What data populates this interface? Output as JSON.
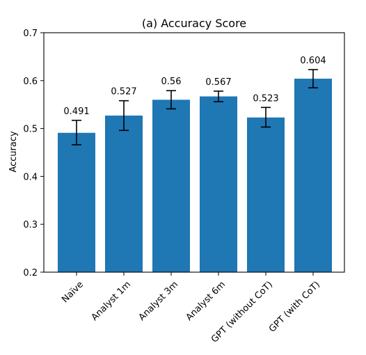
{
  "chart_data": {
    "type": "bar",
    "title": "(a) Accuracy Score",
    "xlabel": "",
    "ylabel": "Accuracy",
    "ylim": [
      0.2,
      0.7
    ],
    "yticks": [
      "0.2",
      "0.3",
      "0.4",
      "0.5",
      "0.6",
      "0.7"
    ],
    "categories": [
      "Naïve",
      "Analyst 1m",
      "Analyst 3m",
      "Analyst 6m",
      "GPT (without CoT)",
      "GPT (with CoT)"
    ],
    "values": [
      0.491,
      0.527,
      0.56,
      0.567,
      0.523,
      0.604
    ],
    "value_labels": [
      "0.491",
      "0.527",
      "0.56",
      "0.567",
      "0.523",
      "0.604"
    ],
    "error_low": [
      0.466,
      0.496,
      0.541,
      0.556,
      0.503,
      0.585
    ],
    "error_high": [
      0.517,
      0.558,
      0.579,
      0.578,
      0.544,
      0.623
    ],
    "bar_color": "#1f77b4",
    "grid": false,
    "legend": "none"
  }
}
